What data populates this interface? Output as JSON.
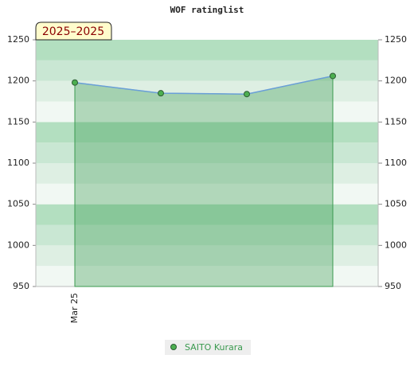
{
  "chart_data": {
    "type": "area",
    "title": "WOF ratinglist",
    "badge": "2025–2025",
    "categories": [
      "Mar 25",
      null,
      null,
      null
    ],
    "series": [
      {
        "name": "SAITO Kurara",
        "color": "#3a9a4f",
        "values": [
          1198,
          1185,
          1184,
          1206
        ]
      }
    ],
    "ylim": [
      950,
      1250
    ],
    "yticks": [
      950,
      1000,
      1050,
      1100,
      1150,
      1200,
      1250
    ],
    "y2lim": [
      950,
      1250
    ],
    "y2ticks": [
      950,
      1000,
      1050,
      1100,
      1150,
      1200,
      1250
    ],
    "legend": "bottom"
  }
}
